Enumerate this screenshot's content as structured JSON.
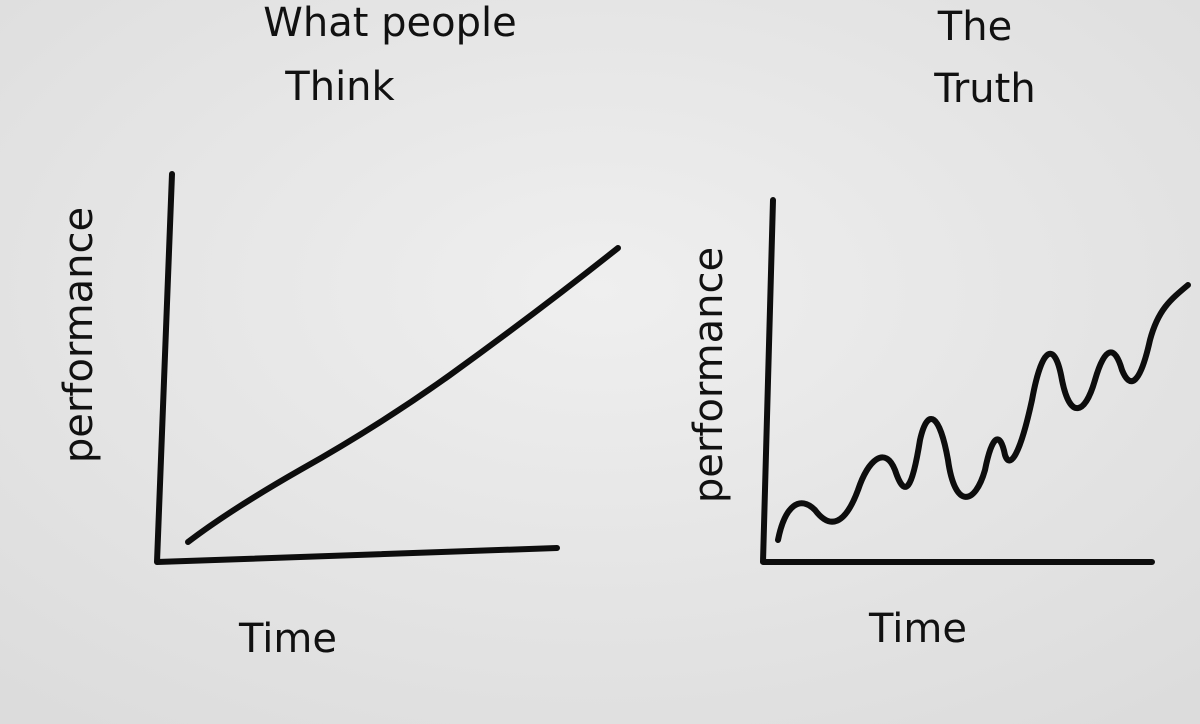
{
  "panels": [
    {
      "title": [
        "What people",
        "Think"
      ],
      "y_label": "performance",
      "x_label": "Time"
    },
    {
      "title": [
        "The",
        "Truth"
      ],
      "y_label": "performance",
      "x_label": "Time"
    }
  ]
}
